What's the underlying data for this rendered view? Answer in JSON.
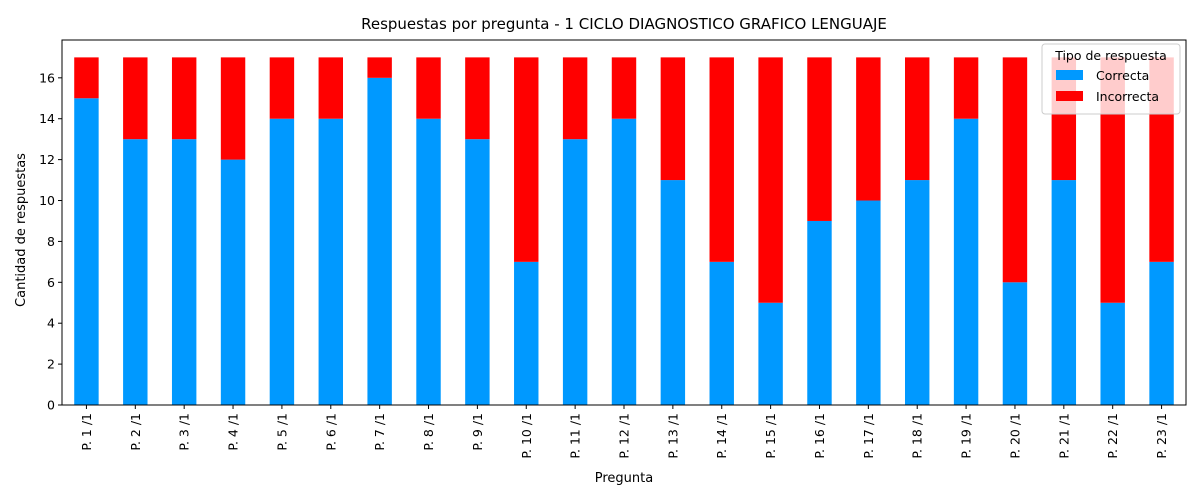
{
  "chart_data": {
    "type": "bar",
    "stacked": true,
    "title": "Respuestas por pregunta - 1 CICLO DIAGNOSTICO GRAFICO LENGUAJE",
    "xlabel": "Pregunta",
    "ylabel": "Cantidad de respuestas",
    "ylim": [
      0,
      17.85
    ],
    "yticks": [
      "0",
      "2",
      "4",
      "6",
      "8",
      "10",
      "12",
      "14",
      "16"
    ],
    "grid": false,
    "legend": {
      "title": "Tipo de respuesta",
      "position": "top-right"
    },
    "categories": [
      "P. 1 /1",
      "P. 2 /1",
      "P. 3 /1",
      "P. 4 /1",
      "P. 5 /1",
      "P. 6 /1",
      "P. 7 /1",
      "P. 8 /1",
      "P. 9 /1",
      "P. 10 /1",
      "P. 11 /1",
      "P. 12 /1",
      "P. 13 /1",
      "P. 14 /1",
      "P. 15 /1",
      "P. 16 /1",
      "P. 17 /1",
      "P. 18 /1",
      "P. 19 /1",
      "P. 20 /1",
      "P. 21 /1",
      "P. 22 /1",
      "P. 23 /1"
    ],
    "series": [
      {
        "name": "Correcta",
        "color": "#0099ff",
        "values": [
          15,
          13,
          13,
          12,
          14,
          14,
          16,
          14,
          13,
          7,
          13,
          14,
          11,
          7,
          5,
          9,
          10,
          11,
          14,
          6,
          11,
          5,
          7
        ]
      },
      {
        "name": "Incorrecta",
        "color": "#ff0000",
        "values": [
          2,
          4,
          4,
          5,
          3,
          3,
          1,
          3,
          4,
          10,
          4,
          3,
          6,
          10,
          12,
          8,
          7,
          6,
          3,
          11,
          6,
          12,
          10
        ]
      }
    ]
  }
}
